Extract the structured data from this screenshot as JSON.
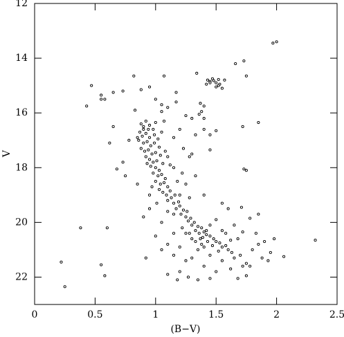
{
  "chart_data": {
    "type": "scatter",
    "x_label": "(B−V)",
    "y_label": "V",
    "color": "#000000",
    "xlim": [
      0,
      2.5
    ],
    "xticks": [
      0,
      0.5,
      1,
      1.5,
      2,
      2.5
    ],
    "ylim": [
      23,
      12
    ],
    "yticks": [
      12,
      14,
      16,
      18,
      20,
      22
    ],
    "x": [
      1.97,
      2.0,
      1.73,
      1.66,
      1.75,
      1.34,
      0.82,
      1.07,
      0.47,
      0.65,
      0.73,
      0.55,
      0.58,
      0.55,
      0.43,
      0.88,
      0.95,
      1.0,
      1.05,
      0.83,
      1.17,
      1.17,
      1.05,
      1.1,
      1.43,
      1.45,
      1.48,
      1.5,
      1.53,
      1.45,
      1.47,
      1.52,
      1.55,
      1.5,
      1.57,
      1.42,
      1.52,
      1.37,
      1.4,
      1.38,
      1.36,
      1.4,
      1.33,
      1.5,
      1.45,
      1.72,
      1.85,
      1.3,
      1.25,
      1.2,
      1.15,
      1.23,
      1.1,
      1.07,
      0.88,
      0.9,
      0.92,
      0.95,
      0.98,
      1.0,
      0.87,
      0.89,
      0.92,
      0.95,
      0.99,
      1.02,
      0.86,
      0.9,
      0.93,
      0.96,
      0.99,
      1.03,
      0.88,
      0.91,
      0.94,
      0.97,
      1.0,
      1.04,
      0.92,
      0.95,
      0.98,
      1.01,
      1.06,
      0.9,
      0.94,
      1.05,
      0.85,
      1.08,
      0.96,
      0.93,
      1.0,
      1.03,
      0.98,
      1.02,
      1.05,
      1.08,
      1.0,
      1.04,
      1.07,
      1.1,
      1.03,
      1.06,
      1.12,
      1.09,
      1.13,
      1.16,
      1.1,
      1.15,
      1.19,
      1.2,
      1.17,
      1.23,
      1.26,
      1.21,
      1.25,
      1.29,
      1.27,
      1.32,
      1.3,
      1.35,
      1.38,
      1.33,
      1.4,
      1.36,
      1.42,
      1.45,
      1.39,
      1.48,
      1.43,
      1.5,
      1.53,
      1.47,
      1.55,
      1.58,
      1.6,
      1.52,
      1.63,
      1.4,
      1.3,
      1.25,
      1.2,
      1.35,
      1.45,
      1.3,
      1.55,
      1.65,
      1.7,
      1.75,
      1.8,
      1.85,
      1.9,
      1.95,
      1.88,
      1.72,
      1.62,
      1.5,
      1.4,
      1.25,
      1.15,
      1.2,
      1.1,
      1.35,
      1.45,
      1.68,
      1.75,
      2.06,
      2.32,
      1.98,
      1.93,
      1.78,
      1.27,
      1.18,
      0.92,
      1.0,
      1.05,
      0.9,
      0.95,
      1.1,
      0.85,
      0.75,
      0.73,
      0.78,
      0.65,
      0.62,
      0.68,
      0.6,
      0.38,
      0.22,
      0.25,
      0.55,
      0.58,
      1.3,
      1.33,
      1.25,
      1.28,
      1.4,
      1.55,
      1.6,
      1.73,
      1.75,
      1.71,
      1.65,
      1.78,
      1.72,
      1.83,
      1.85,
      1.68,
      1.58,
      1.62,
      1.5,
      1.45,
      1.55,
      1.15,
      1.1,
      1.05,
      1.2,
      1.22,
      1.15,
      1.18,
      1.12,
      1.28,
      1.45,
      1.4,
      0.97,
      0.95,
      1.01,
      1.15,
      1.22,
      1.28,
      1.33,
      1.38,
      1.42,
      1.37
    ],
    "y": [
      13.45,
      13.4,
      14.1,
      14.2,
      14.65,
      14.55,
      14.65,
      14.65,
      15.0,
      15.25,
      15.2,
      15.35,
      15.5,
      15.5,
      15.75,
      15.15,
      15.05,
      15.5,
      15.7,
      15.9,
      15.25,
      15.6,
      15.95,
      15.8,
      14.8,
      14.85,
      14.82,
      14.9,
      14.95,
      14.9,
      14.75,
      15.0,
      15.1,
      15.05,
      14.8,
      14.95,
      14.78,
      15.65,
      15.75,
      15.95,
      16.05,
      16.2,
      16.8,
      16.65,
      17.35,
      16.5,
      16.35,
      16.2,
      16.1,
      16.6,
      16.9,
      17.3,
      17.6,
      16.3,
      16.4,
      16.5,
      16.3,
      16.45,
      16.6,
      16.35,
      16.7,
      16.85,
      16.75,
      16.9,
      16.8,
      16.95,
      17.0,
      17.1,
      17.05,
      17.2,
      17.1,
      17.25,
      17.3,
      17.4,
      17.35,
      17.5,
      17.45,
      17.55,
      17.6,
      17.7,
      17.8,
      17.75,
      17.85,
      16.6,
      16.6,
      16.7,
      16.9,
      17.4,
      17.95,
      17.85,
      18.0,
      18.1,
      18.2,
      18.3,
      18.25,
      18.4,
      18.5,
      18.6,
      18.55,
      18.7,
      18.8,
      18.9,
      18.85,
      19.0,
      19.1,
      19.0,
      19.2,
      19.3,
      19.25,
      19.4,
      19.5,
      19.55,
      19.6,
      19.7,
      19.8,
      19.85,
      19.95,
      20.0,
      20.1,
      20.15,
      20.2,
      20.3,
      20.35,
      20.4,
      20.45,
      20.5,
      20.55,
      20.6,
      20.7,
      20.7,
      20.75,
      20.85,
      20.9,
      20.85,
      21.0,
      21.05,
      21.1,
      20.9,
      20.6,
      20.4,
      20.9,
      21.0,
      21.2,
      21.3,
      21.4,
      21.3,
      21.2,
      21.5,
      21.0,
      20.8,
      20.7,
      21.1,
      21.3,
      21.6,
      21.7,
      21.8,
      21.6,
      21.4,
      21.2,
      21.8,
      21.9,
      22.1,
      22.05,
      22.05,
      21.95,
      21.25,
      20.65,
      20.6,
      21.4,
      21.6,
      22.0,
      22.1,
      21.3,
      20.5,
      20.0,
      19.8,
      19.5,
      19.6,
      18.6,
      18.3,
      17.8,
      17.0,
      16.5,
      17.1,
      18.05,
      20.2,
      20.2,
      21.45,
      22.35,
      21.55,
      21.95,
      17.5,
      18.3,
      18.6,
      19.1,
      19.0,
      19.3,
      19.5,
      18.05,
      18.1,
      19.45,
      20.1,
      19.85,
      20.35,
      20.4,
      19.7,
      20.6,
      20.4,
      20.65,
      19.9,
      20.1,
      20.3,
      20.4,
      20.8,
      21.0,
      19.0,
      18.2,
      18.0,
      18.5,
      17.9,
      17.6,
      16.8,
      16.6,
      18.7,
      19.0,
      19.3,
      19.7,
      20.2,
      20.4,
      20.7,
      20.8,
      20.3,
      20.6
    ]
  }
}
